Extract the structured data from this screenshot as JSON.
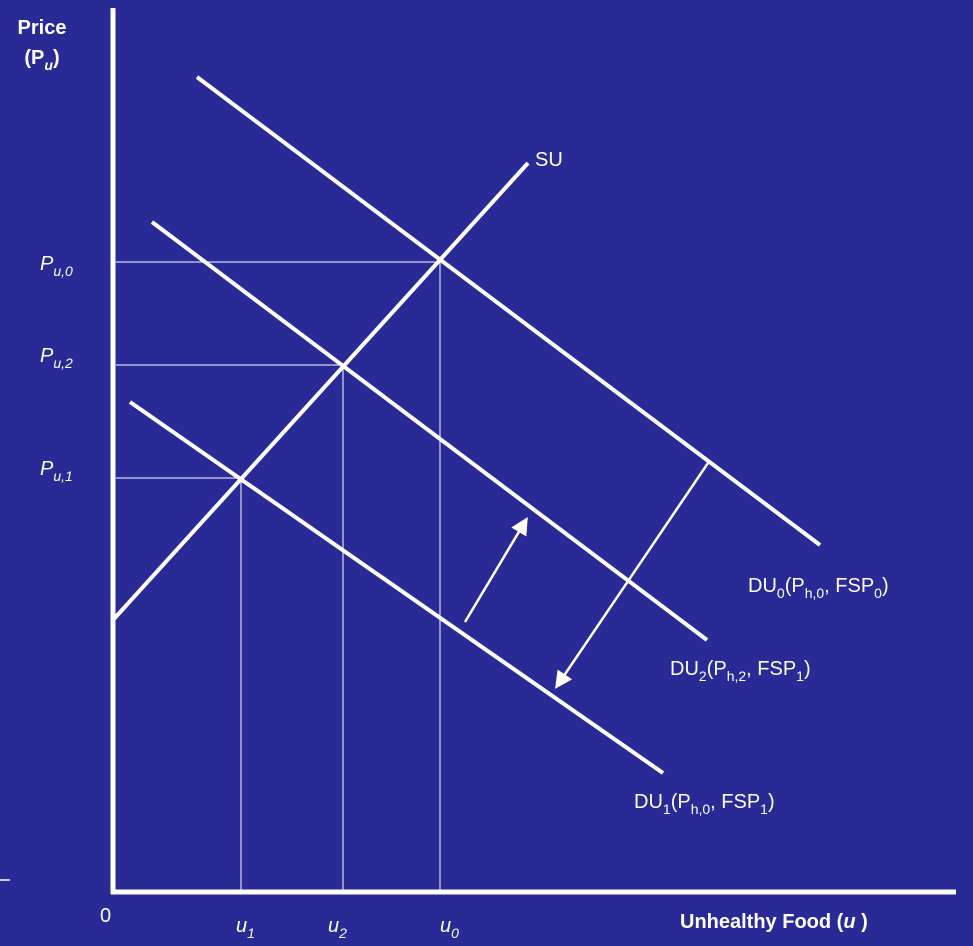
{
  "y_axis_label": {
    "line1": "Price",
    "parts": [
      "(P",
      "u",
      ")"
    ]
  },
  "x_axis_label": {
    "text": "Unhealthy Food (",
    "variable": "u",
    "close": " )"
  },
  "origin_label": "0",
  "supply_curve": {
    "label": "SU"
  },
  "demand_curves": [
    {
      "parts": [
        "DU",
        "0",
        "(P",
        "h,0",
        ", FSP",
        "0",
        ")"
      ]
    },
    {
      "parts": [
        "DU",
        "2",
        "(P",
        "h,2",
        ", FSP",
        "1",
        ")"
      ]
    },
    {
      "parts": [
        "DU",
        "1",
        "(P",
        "h,0",
        ", FSP",
        "1",
        ")"
      ]
    }
  ],
  "price_labels": [
    {
      "parts": [
        "P",
        "u,0"
      ]
    },
    {
      "parts": [
        "P",
        "u,2"
      ]
    },
    {
      "parts": [
        "P",
        "u,1"
      ]
    }
  ],
  "quantity_labels": [
    {
      "parts": [
        "u",
        "1"
      ]
    },
    {
      "parts": [
        "u",
        "2"
      ]
    },
    {
      "parts": [
        "u",
        "0"
      ]
    }
  ]
}
